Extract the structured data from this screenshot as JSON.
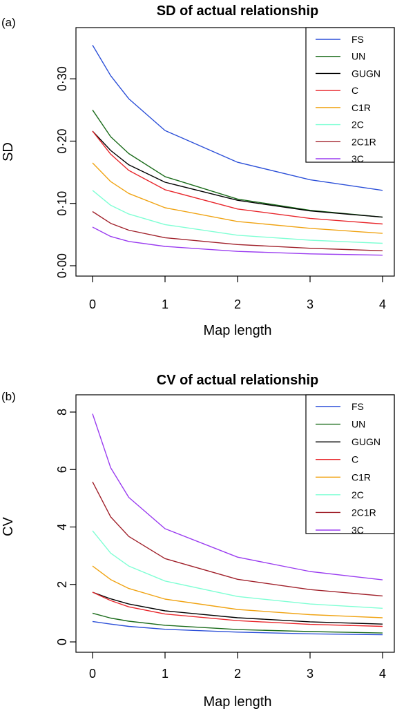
{
  "chart_data": [
    {
      "type": "line",
      "panel_label": "(a)",
      "title": "SD of actual relationship",
      "xlabel": "Map length",
      "ylabel": "SD",
      "xlim": [
        0,
        4
      ],
      "ylim": [
        0,
        0.36
      ],
      "x_ticks": [
        0,
        1,
        2,
        3,
        4
      ],
      "x_tick_labels": [
        "0",
        "1",
        "2",
        "3",
        "4"
      ],
      "y_ticks": [
        0,
        0.1,
        0.2,
        0.3
      ],
      "y_tick_labels": [
        "0·00",
        "0·10",
        "0·20",
        "0·30"
      ],
      "grid": false,
      "legend_position": "top-right",
      "x": [
        0,
        0.25,
        0.5,
        1,
        2,
        3,
        4
      ],
      "series": [
        {
          "name": "FS",
          "color": "#2b4fd8",
          "values": [
            0.354,
            0.305,
            0.268,
            0.217,
            0.166,
            0.138,
            0.121
          ]
        },
        {
          "name": "UN",
          "color": "#1a6b1a",
          "values": [
            0.25,
            0.207,
            0.18,
            0.143,
            0.107,
            0.089,
            0.078
          ]
        },
        {
          "name": "GUGN",
          "color": "#000000",
          "values": [
            0.216,
            0.185,
            0.162,
            0.134,
            0.105,
            0.088,
            0.078
          ]
        },
        {
          "name": "C",
          "color": "#e8262b",
          "values": [
            0.216,
            0.179,
            0.153,
            0.122,
            0.091,
            0.076,
            0.067
          ]
        },
        {
          "name": "C1R",
          "color": "#f0a312",
          "values": [
            0.165,
            0.135,
            0.116,
            0.093,
            0.071,
            0.06,
            0.052
          ]
        },
        {
          "name": "2C",
          "color": "#7fffd4",
          "values": [
            0.121,
            0.097,
            0.083,
            0.066,
            0.049,
            0.041,
            0.036
          ]
        },
        {
          "name": "2C1R",
          "color": "#a0202a",
          "values": [
            0.087,
            0.068,
            0.057,
            0.045,
            0.034,
            0.028,
            0.024
          ]
        },
        {
          "name": "3C",
          "color": "#9a3cf0",
          "values": [
            0.062,
            0.047,
            0.039,
            0.031,
            0.023,
            0.019,
            0.017
          ]
        }
      ]
    },
    {
      "type": "line",
      "panel_label": "(b)",
      "title": "CV of actual relationship",
      "xlabel": "Map length",
      "ylabel": "CV",
      "xlim": [
        0,
        4
      ],
      "ylim": [
        0,
        8
      ],
      "x_ticks": [
        0,
        1,
        2,
        3,
        4
      ],
      "x_tick_labels": [
        "0",
        "1",
        "2",
        "3",
        "4"
      ],
      "y_ticks": [
        0,
        2,
        4,
        6,
        8
      ],
      "y_tick_labels": [
        "0",
        "2",
        "4",
        "6",
        "8"
      ],
      "grid": false,
      "legend_position": "top-right",
      "x": [
        0,
        0.25,
        0.5,
        1,
        2,
        3,
        4
      ],
      "series": [
        {
          "name": "FS",
          "color": "#2b4fd8",
          "values": [
            0.71,
            0.62,
            0.54,
            0.44,
            0.34,
            0.28,
            0.25
          ]
        },
        {
          "name": "UN",
          "color": "#1a6b1a",
          "values": [
            1.0,
            0.83,
            0.72,
            0.58,
            0.43,
            0.36,
            0.31
          ]
        },
        {
          "name": "GUGN",
          "color": "#000000",
          "values": [
            1.73,
            1.5,
            1.32,
            1.08,
            0.84,
            0.7,
            0.62
          ]
        },
        {
          "name": "C",
          "color": "#e8262b",
          "values": [
            1.73,
            1.44,
            1.22,
            0.97,
            0.74,
            0.61,
            0.54
          ]
        },
        {
          "name": "C1R",
          "color": "#f0a312",
          "values": [
            2.64,
            2.17,
            1.86,
            1.49,
            1.13,
            0.95,
            0.84
          ]
        },
        {
          "name": "2C",
          "color": "#7fffd4",
          "values": [
            3.87,
            3.09,
            2.64,
            2.12,
            1.58,
            1.32,
            1.17
          ]
        },
        {
          "name": "2C1R",
          "color": "#a0202a",
          "values": [
            5.57,
            4.35,
            3.67,
            2.9,
            2.18,
            1.82,
            1.6
          ]
        },
        {
          "name": "3C",
          "color": "#9a3cf0",
          "values": [
            7.94,
            6.06,
            5.03,
            3.94,
            2.95,
            2.45,
            2.16
          ]
        }
      ]
    }
  ]
}
